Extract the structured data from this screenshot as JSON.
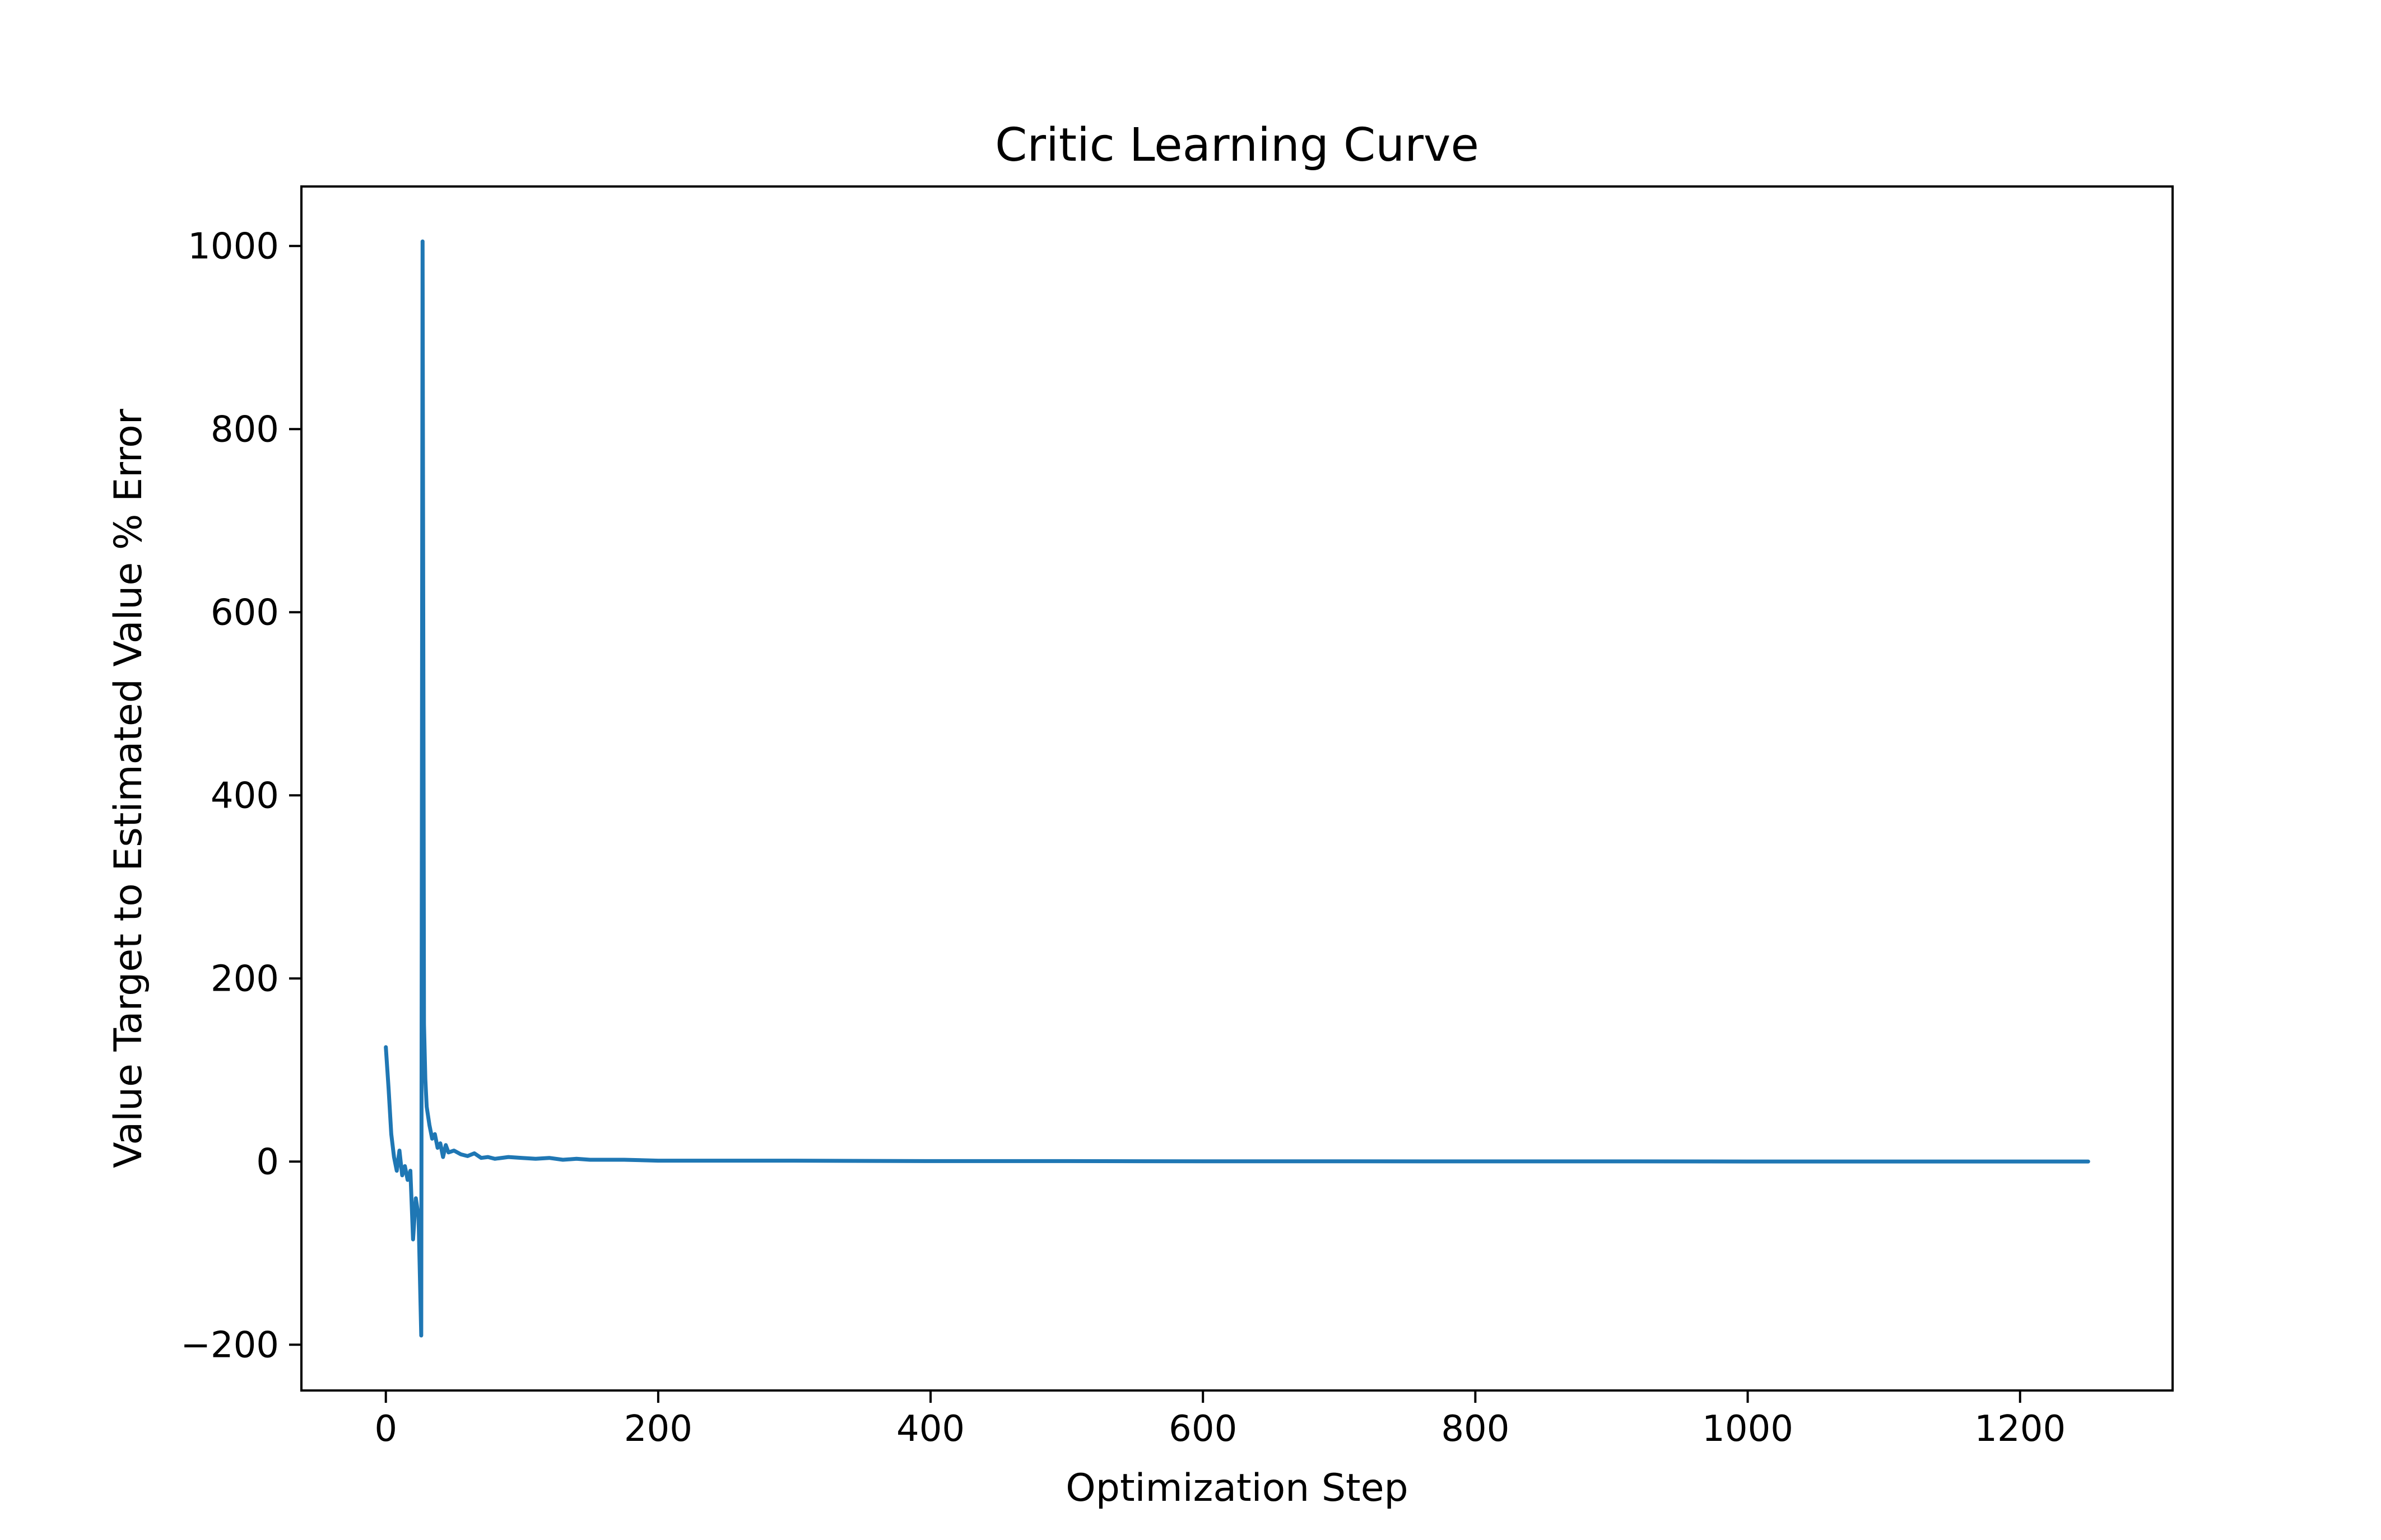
{
  "chart_data": {
    "type": "line",
    "title": "Critic Learning Curve",
    "xlabel": "Optimization Step",
    "ylabel": "Value Target to Estimated Value % Error",
    "xlim": [
      -62,
      1312
    ],
    "ylim": [
      -250,
      1065
    ],
    "xticks": [
      0,
      200,
      400,
      600,
      800,
      1000,
      1200
    ],
    "xtick_labels": [
      "0",
      "200",
      "400",
      "600",
      "800",
      "1000",
      "1200"
    ],
    "yticks": [
      -200,
      0,
      200,
      400,
      600,
      800,
      1000
    ],
    "ytick_labels": [
      "−200",
      "0",
      "200",
      "400",
      "600",
      "800",
      "1000"
    ],
    "grid": false,
    "series": [
      {
        "color": "#1f77b4",
        "x": [
          0,
          2,
          4,
          6,
          8,
          10,
          12,
          14,
          16,
          18,
          20,
          22,
          24,
          26,
          27,
          28,
          29,
          30,
          32,
          34,
          36,
          38,
          40,
          42,
          44,
          46,
          50,
          55,
          60,
          65,
          70,
          75,
          80,
          90,
          100,
          110,
          120,
          130,
          140,
          150,
          175,
          200,
          250,
          300,
          400,
          500,
          600,
          700,
          800,
          900,
          1000,
          1100,
          1200,
          1250
        ],
        "y": [
          125,
          80,
          30,
          5,
          -10,
          12,
          -15,
          -5,
          -20,
          -10,
          -85,
          -40,
          -60,
          -190,
          1005,
          150,
          90,
          60,
          40,
          25,
          30,
          15,
          20,
          5,
          18,
          10,
          12,
          8,
          6,
          9,
          4,
          5,
          3,
          5,
          4,
          3,
          4,
          2,
          3,
          2,
          2,
          1,
          1,
          1,
          0.5,
          0.5,
          0.3,
          0.3,
          0.2,
          0.2,
          0.1,
          0.1,
          0.1,
          0.1
        ]
      }
    ]
  }
}
